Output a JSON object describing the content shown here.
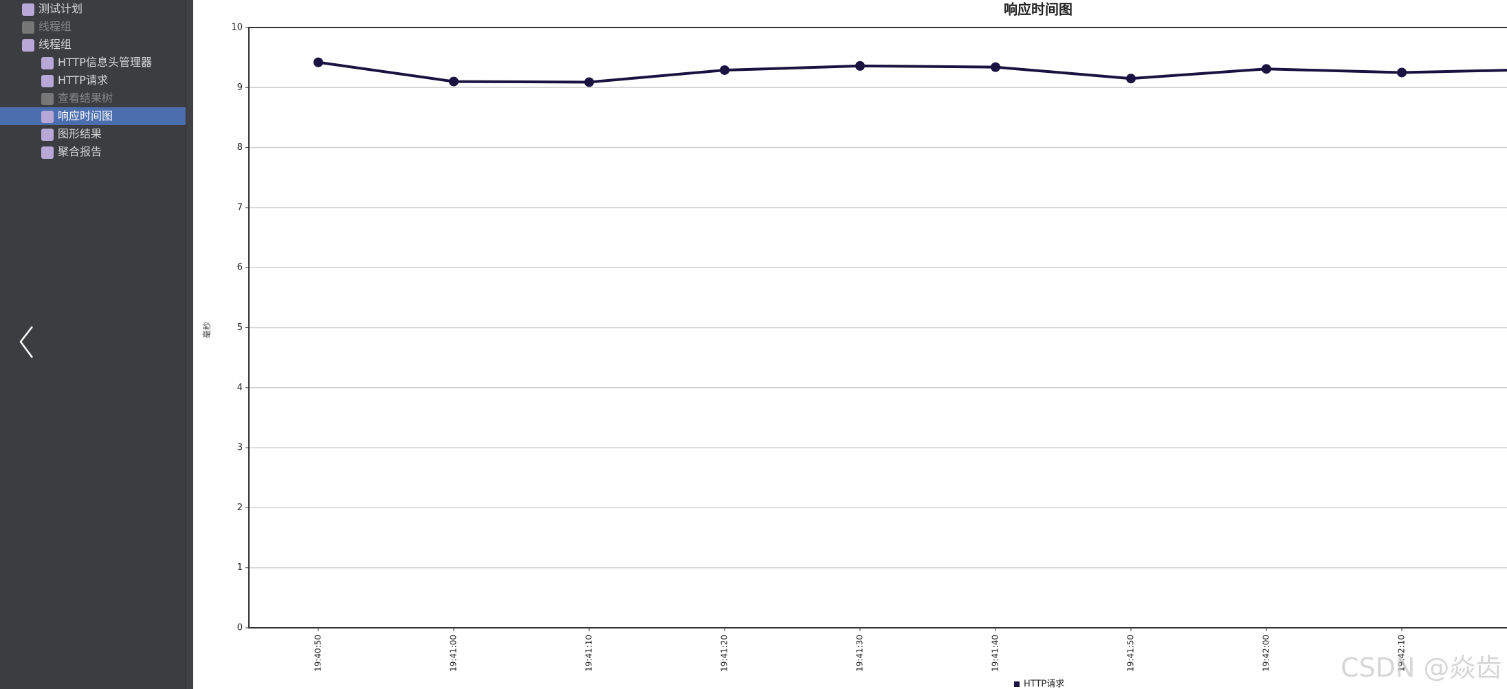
{
  "sidebar": {
    "items": [
      {
        "label": "测试计划",
        "level": 0,
        "disabled": false,
        "selected": false
      },
      {
        "label": "线程组",
        "level": 0,
        "disabled": true,
        "selected": false
      },
      {
        "label": "线程组",
        "level": 0,
        "disabled": false,
        "selected": false
      },
      {
        "label": "HTTP信息头管理器",
        "level": 1,
        "disabled": false,
        "selected": false
      },
      {
        "label": "HTTP请求",
        "level": 1,
        "disabled": false,
        "selected": false
      },
      {
        "label": "查看结果树",
        "level": 1,
        "disabled": true,
        "selected": false
      },
      {
        "label": "响应时间图",
        "level": 1,
        "disabled": false,
        "selected": true
      },
      {
        "label": "图形结果",
        "level": 1,
        "disabled": false,
        "selected": false
      },
      {
        "label": "聚合报告",
        "level": 1,
        "disabled": false,
        "selected": false
      }
    ]
  },
  "chart_data": {
    "type": "line",
    "title": "响应时间图",
    "y_label": "毫秒",
    "categories": [
      "19:40:50",
      "19:41:00",
      "19:41:10",
      "19:41:20",
      "19:41:30",
      "19:41:40",
      "19:41:50",
      "19:42:00",
      "19:42:10",
      null
    ],
    "series": [
      {
        "name": "HTTP请求",
        "color": "#1a1240",
        "values": [
          9.42,
          9.1,
          9.09,
          9.29,
          9.36,
          9.34,
          9.15,
          9.31,
          9.25,
          9.3
        ]
      }
    ],
    "ylim": [
      0,
      10
    ],
    "yticks": [
      0,
      1,
      2,
      3,
      4,
      5,
      6,
      7,
      8,
      9,
      10
    ],
    "grid": true,
    "legend": "bottom"
  },
  "watermark": "CSDN @焱齿"
}
